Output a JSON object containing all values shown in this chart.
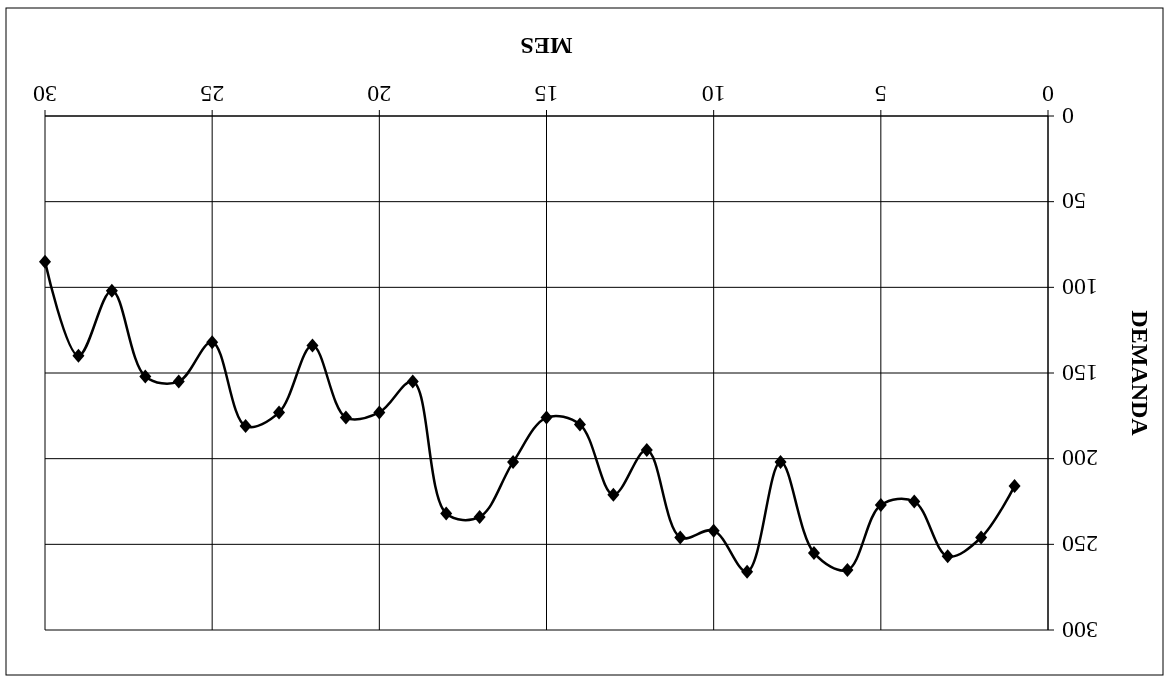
{
  "chart_data": {
    "type": "line",
    "xlabel": "MES",
    "ylabel": "DEMANDA",
    "x": [
      1,
      2,
      3,
      4,
      5,
      6,
      7,
      8,
      9,
      10,
      11,
      12,
      13,
      14,
      15,
      16,
      17,
      18,
      19,
      20,
      21,
      22,
      23,
      24,
      25,
      26,
      27,
      28,
      29,
      30
    ],
    "series": [
      {
        "color": "#000000",
        "values": [
          216,
          246,
          257,
          225,
          227,
          265,
          255,
          202,
          266,
          242,
          246,
          195,
          221,
          180,
          176,
          202,
          234,
          232,
          155,
          173,
          176,
          134,
          173,
          181,
          132,
          155,
          152,
          102,
          140,
          85
        ]
      }
    ],
    "xlim": [
      30,
      0
    ],
    "xticks": [
      0,
      5,
      10,
      15,
      20,
      25,
      30
    ],
    "ylim": [
      300,
      0
    ],
    "yticks": [
      0,
      50,
      100,
      150,
      200,
      250,
      300
    ],
    "grid": true,
    "marker": "diamond",
    "line_style": "solid"
  }
}
